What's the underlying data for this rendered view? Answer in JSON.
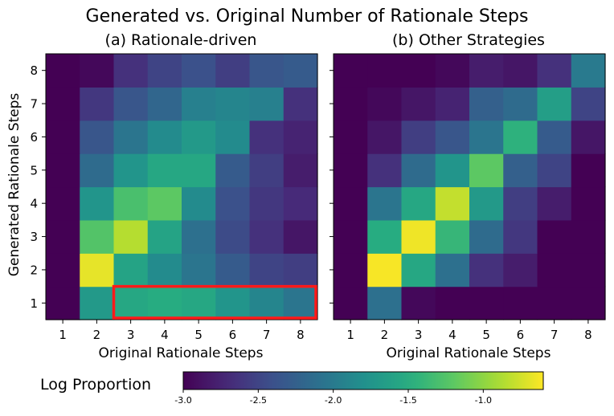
{
  "chart_data": {
    "type": "heatmap",
    "title": "Generated vs. Original Number of Rationale Steps",
    "ylabel": "Generated Rationale Steps",
    "colorbar": {
      "label": "Log Proportion",
      "range": [
        -3.0,
        -0.6
      ],
      "ticks": [
        -3.0,
        -2.5,
        -2.0,
        -1.5,
        -1.0
      ],
      "tick_labels": [
        "-3.0",
        "-2.5",
        "-2.0",
        "-1.5",
        "-1.0"
      ],
      "colormap": "viridis"
    },
    "panels": [
      {
        "title": "(a) Rationale-driven",
        "xlabel": "Original Rationale Steps",
        "x": [
          1,
          2,
          3,
          4,
          5,
          6,
          7,
          8
        ],
        "y": [
          1,
          2,
          3,
          4,
          5,
          6,
          7,
          8
        ],
        "x_tick_labels": [
          "1",
          "2",
          "3",
          "4",
          "5",
          "6",
          "7",
          "8"
        ],
        "y_tick_labels": [
          "1",
          "2",
          "3",
          "4",
          "5",
          "6",
          "7",
          "8"
        ],
        "values": [
          [
            -3.0,
            -1.7,
            -1.55,
            -1.5,
            -1.55,
            -1.75,
            -1.9,
            -2.05
          ],
          [
            -3.0,
            -0.68,
            -1.6,
            -1.85,
            -2.05,
            -2.3,
            -2.5,
            -2.55
          ],
          [
            -3.0,
            -1.25,
            -0.85,
            -1.6,
            -2.1,
            -2.45,
            -2.65,
            -2.85
          ],
          [
            -3.0,
            -1.75,
            -1.3,
            -1.2,
            -1.85,
            -2.4,
            -2.6,
            -2.7
          ],
          [
            -3.0,
            -2.15,
            -1.75,
            -1.55,
            -1.55,
            -2.3,
            -2.55,
            -2.8
          ],
          [
            -3.0,
            -2.35,
            -2.05,
            -1.85,
            -1.7,
            -1.85,
            -2.65,
            -2.75
          ],
          [
            -3.0,
            -2.6,
            -2.35,
            -2.2,
            -1.95,
            -1.9,
            -1.95,
            -2.65
          ],
          [
            -3.0,
            -2.95,
            -2.65,
            -2.5,
            -2.4,
            -2.55,
            -2.35,
            -2.3
          ]
        ],
        "annotation": "red box highlighting generated=1, original=3-8"
      },
      {
        "title": "(b) Other Strategies",
        "xlabel": "Original Rationale Steps",
        "x": [
          1,
          2,
          3,
          4,
          5,
          6,
          7,
          8
        ],
        "y": [
          1,
          2,
          3,
          4,
          5,
          6,
          7,
          8
        ],
        "x_tick_labels": [
          "1",
          "2",
          "3",
          "4",
          "5",
          "6",
          "7",
          "8"
        ],
        "y_tick_labels": [
          "1",
          "2",
          "3",
          "4",
          "5",
          "6",
          "7",
          "8"
        ],
        "values": [
          [
            -3.0,
            -2.1,
            -2.95,
            -3.0,
            -3.0,
            -3.0,
            -3.0,
            -3.0
          ],
          [
            -3.0,
            -0.62,
            -1.55,
            -2.1,
            -2.65,
            -2.8,
            -3.0,
            -3.0
          ],
          [
            -3.0,
            -1.5,
            -0.65,
            -1.4,
            -2.15,
            -2.6,
            -3.0,
            -3.0
          ],
          [
            -3.0,
            -2.05,
            -1.55,
            -0.8,
            -1.7,
            -2.55,
            -2.8,
            -3.0
          ],
          [
            -3.0,
            -2.65,
            -2.15,
            -1.75,
            -1.2,
            -2.25,
            -2.5,
            -3.0
          ],
          [
            -3.0,
            -2.85,
            -2.55,
            -2.35,
            -2.05,
            -1.45,
            -2.3,
            -2.85
          ],
          [
            -3.0,
            -2.95,
            -2.85,
            -2.75,
            -2.25,
            -2.15,
            -1.65,
            -2.5
          ],
          [
            -3.0,
            -3.0,
            -3.0,
            -2.95,
            -2.8,
            -2.85,
            -2.65,
            -2.0
          ]
        ]
      }
    ]
  }
}
